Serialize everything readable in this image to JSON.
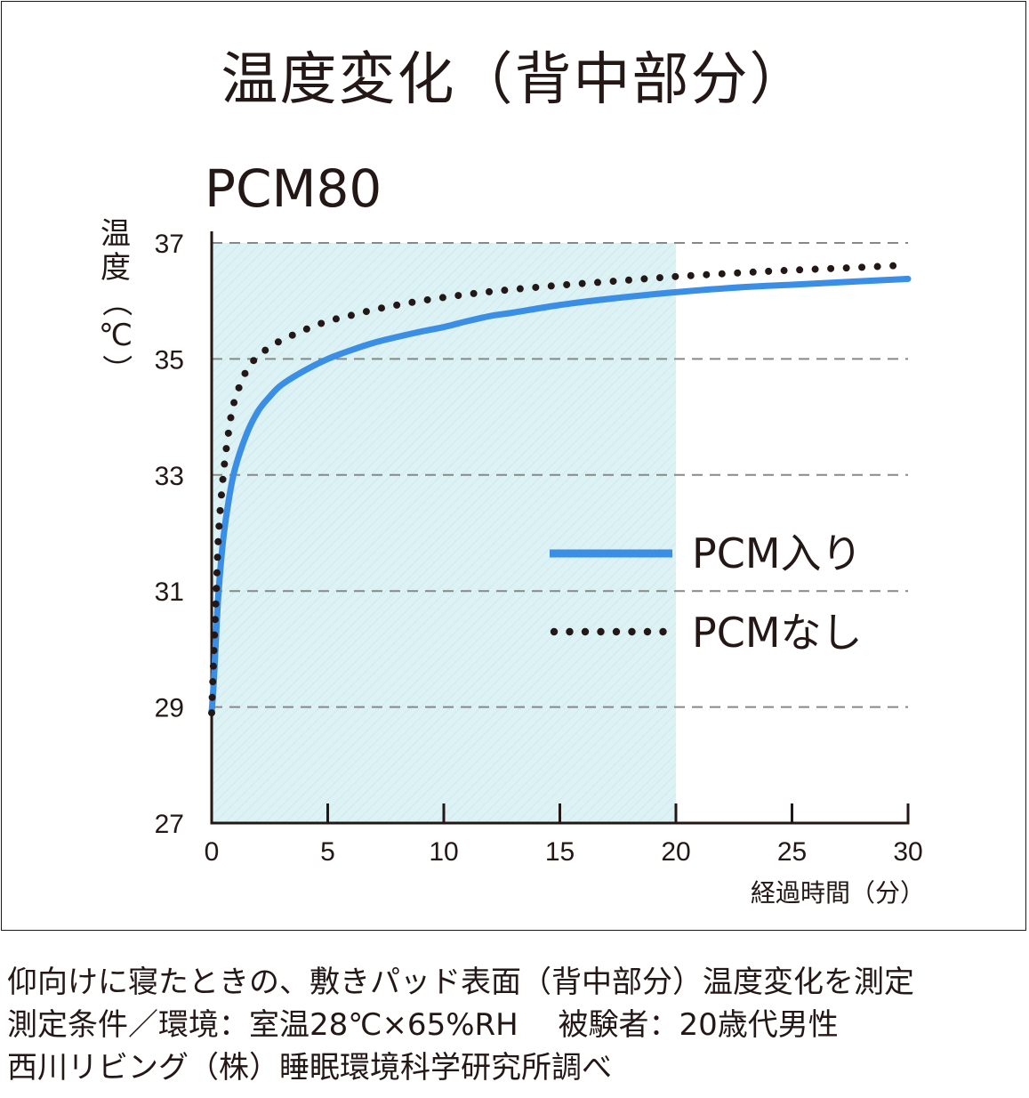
{
  "title": "温度変化（背中部分）",
  "subtitle": "PCM80",
  "notes": [
    "仰向けに寝たときの、敷きパッド表面（背中部分）温度変化を測定",
    "測定条件／環境：室温28℃×65%RH　 被験者：20歳代男性",
    "西川リビング（株）睡眠環境科学研究所調べ"
  ],
  "colors": {
    "line": "#3a8ee6",
    "shade": "#ddf2f4",
    "text": "#231815",
    "grid": "#888888"
  },
  "chart_data": {
    "type": "line",
    "ylabel_chars": [
      "温",
      "度",
      "（",
      "℃",
      "）"
    ],
    "xlabel": "経過時間（分）",
    "xlim": [
      0,
      30
    ],
    "ylim": [
      27,
      37
    ],
    "x_ticks": [
      "0",
      "5",
      "10",
      "15",
      "20",
      "25",
      "30"
    ],
    "y_ticks": [
      "27",
      "29",
      "31",
      "33",
      "35",
      "37"
    ],
    "grid": "horizontal dashed",
    "shaded_region_x": [
      0,
      20
    ],
    "legend_position": "right-middle",
    "series": [
      {
        "name": "PCM入り",
        "style": "solid",
        "x": [
          0,
          0.1,
          0.2,
          0.3,
          0.5,
          0.75,
          1,
          1.5,
          2,
          2.5,
          3,
          4,
          5,
          6,
          7,
          8,
          9,
          10,
          11,
          12,
          13,
          15,
          17,
          20,
          23,
          25,
          28,
          30
        ],
        "y": [
          28.9,
          29.5,
          30.3,
          31.0,
          31.9,
          32.6,
          33.1,
          33.7,
          34.1,
          34.35,
          34.55,
          34.8,
          35.0,
          35.15,
          35.28,
          35.38,
          35.47,
          35.55,
          35.65,
          35.74,
          35.8,
          35.93,
          36.03,
          36.15,
          36.24,
          36.28,
          36.34,
          36.38
        ]
      },
      {
        "name": "PCMなし",
        "style": "dotted",
        "x": [
          0,
          0.1,
          0.2,
          0.3,
          0.5,
          0.75,
          1,
          1.5,
          2,
          2.5,
          3,
          4,
          5,
          6,
          7,
          8,
          9,
          10,
          12,
          15,
          17,
          20,
          23,
          25,
          28,
          30
        ],
        "y": [
          28.9,
          30.0,
          31.0,
          32.0,
          33.0,
          33.8,
          34.3,
          34.8,
          35.05,
          35.2,
          35.32,
          35.5,
          35.65,
          35.75,
          35.85,
          35.93,
          36.0,
          36.06,
          36.16,
          36.27,
          36.33,
          36.42,
          36.49,
          36.53,
          36.58,
          36.62
        ]
      }
    ]
  }
}
